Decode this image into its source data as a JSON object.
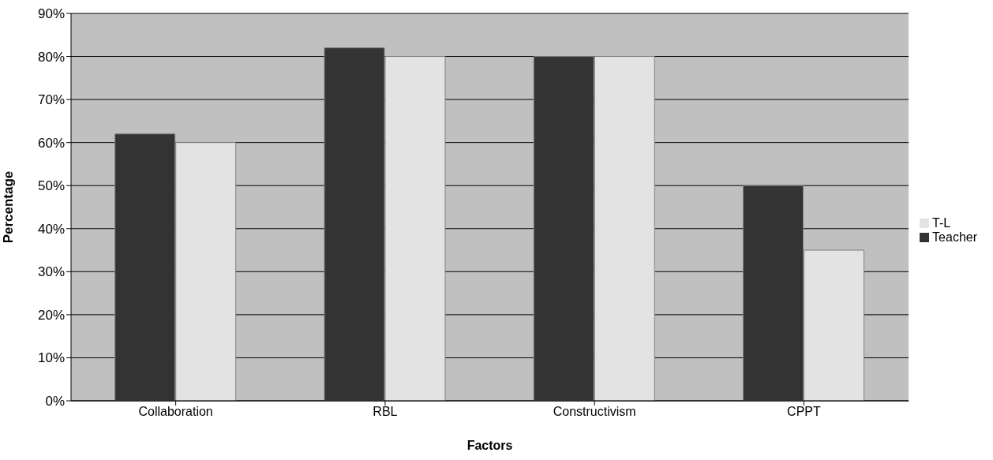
{
  "chart_data": {
    "type": "bar",
    "xlabel": "Factors",
    "ylabel": "Percentage",
    "categories": [
      "Collaboration",
      "RBL",
      "Constructivism",
      "CPPT"
    ],
    "series": [
      {
        "name": "Teacher",
        "color": "#333333",
        "values": [
          62,
          82,
          80,
          50
        ]
      },
      {
        "name": "T-L",
        "color": "#e3e3e3",
        "values": [
          60,
          80,
          80,
          35
        ]
      }
    ],
    "ylim": [
      0,
      90
    ],
    "yticks": [
      {
        "value": 0,
        "label": "0%"
      },
      {
        "value": 10,
        "label": "10%"
      },
      {
        "value": 20,
        "label": "20%"
      },
      {
        "value": 30,
        "label": "30%"
      },
      {
        "value": 40,
        "label": "40%"
      },
      {
        "value": 50,
        "label": "50%"
      },
      {
        "value": 60,
        "label": "60%"
      },
      {
        "value": 70,
        "label": "70%"
      },
      {
        "value": 80,
        "label": "80%"
      },
      {
        "value": 90,
        "label": "90%"
      }
    ],
    "grid": "y",
    "legend": "right"
  }
}
